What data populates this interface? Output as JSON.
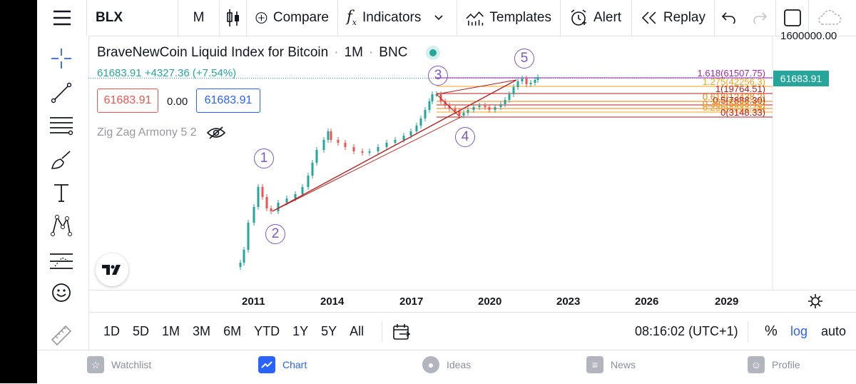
{
  "toolbar": {
    "symbol": "BLX",
    "interval": "M",
    "compare": "Compare",
    "indicators": "Indicators",
    "templates": "Templates",
    "alert": "Alert",
    "replay": "Replay"
  },
  "chart": {
    "title": "BraveNewCoin Liquid Index for Bitcoin",
    "interval": "1M",
    "exchange": "BNC",
    "ohlc": "61683.91 +4327.36 (+7.54%)",
    "sell_price": "61683.91",
    "spread": "0.00",
    "buy_price": "61683.91",
    "indicator": "Zig Zag Armony 5 2",
    "last_price": "61683.91",
    "axis_top": "1600000.00",
    "fib_levels": [
      {
        "label": "1.618(61507.75)",
        "color": "#9c27b0"
      },
      {
        "label": "1.275(42256.3)",
        "color": "#f7a21b"
      },
      {
        "label": "1(19764.51)",
        "color": "#b71c1c"
      },
      {
        "label": "0.618(12438.2)",
        "color": "#f57c00"
      },
      {
        "label": "0.5(7888.30)",
        "color": "#b71c1c"
      },
      {
        "label": "0.382(5688.42)",
        "color": "#f57c00"
      },
      {
        "label": "0.236(4532.13)",
        "color": "#f7a21b"
      },
      {
        "label": "0(3148.33)",
        "color": "#b71c1c"
      }
    ],
    "waves": [
      "1",
      "2",
      "3",
      "4",
      "5"
    ],
    "years": [
      "2011",
      "2014",
      "2017",
      "2020",
      "2023",
      "2026",
      "2029"
    ],
    "colors": {
      "up": "#26a69a",
      "down": "#ef5350",
      "wave": "#7e57c2",
      "trend": "#b71c1c"
    }
  },
  "ranges": [
    "1D",
    "5D",
    "1M",
    "3M",
    "6M",
    "YTD",
    "1Y",
    "5Y",
    "All"
  ],
  "status": {
    "time": "08:16:02 (UTC+1)",
    "percent": "%",
    "log": "log",
    "auto": "auto"
  },
  "nav": {
    "watchlist": "Watchlist",
    "chart": "Chart",
    "ideas": "Ideas",
    "news": "News",
    "profile": "Profile"
  }
}
